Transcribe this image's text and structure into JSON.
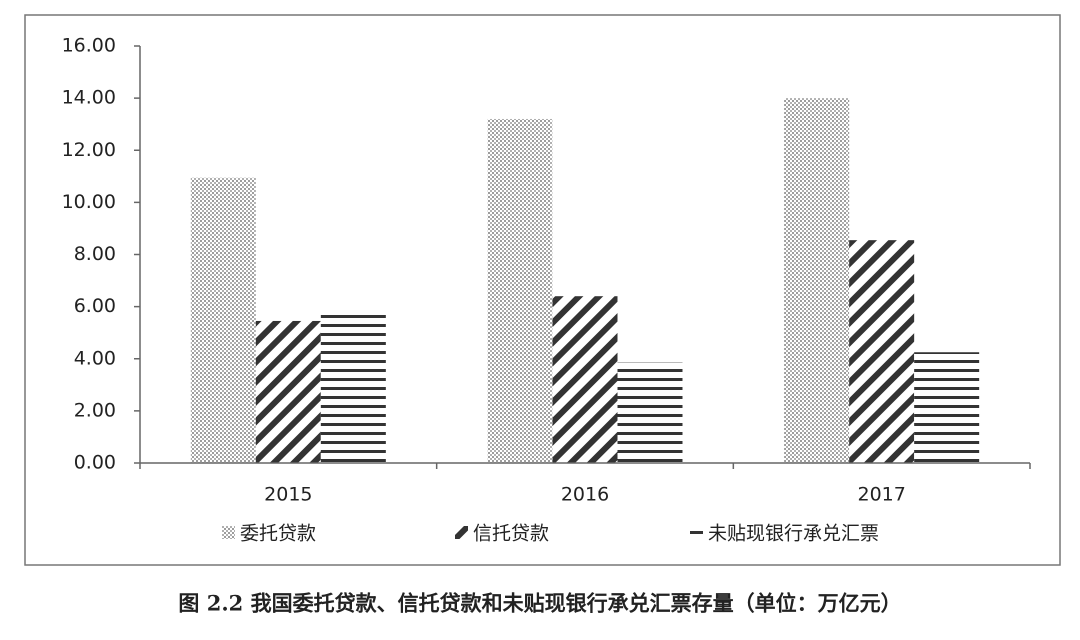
{
  "chart_data": {
    "type": "bar",
    "categories": [
      "2015",
      "2016",
      "2017"
    ],
    "series": [
      {
        "name": "委托贷款",
        "color": "#555555",
        "pattern": "dots",
        "values": [
          10.95,
          13.2,
          14.0
        ]
      },
      {
        "name": "信托贷款",
        "color": "#333333",
        "pattern": "diagonal",
        "values": [
          5.45,
          6.4,
          8.55
        ]
      },
      {
        "name": "未贴现银行承兑汇票",
        "color": "#333333",
        "pattern": "horizontal",
        "values": [
          5.8,
          3.85,
          4.25
        ]
      }
    ],
    "ylim": [
      0,
      16
    ],
    "yticks": [
      {
        "value": 0,
        "label": "0.00"
      },
      {
        "value": 2,
        "label": "2.00"
      },
      {
        "value": 4,
        "label": "4.00"
      },
      {
        "value": 6,
        "label": "6.00"
      },
      {
        "value": 8,
        "label": "8.00"
      },
      {
        "value": 10,
        "label": "10.00"
      },
      {
        "value": 12,
        "label": "12.00"
      },
      {
        "value": 14,
        "label": "14.00"
      },
      {
        "value": 16,
        "label": "16.00"
      }
    ],
    "grid": false,
    "legend": "bottom",
    "caption": "图 2.2 我国委托贷款、信托贷款和未贴现银行承兑汇票存量（单位：万亿元）"
  }
}
